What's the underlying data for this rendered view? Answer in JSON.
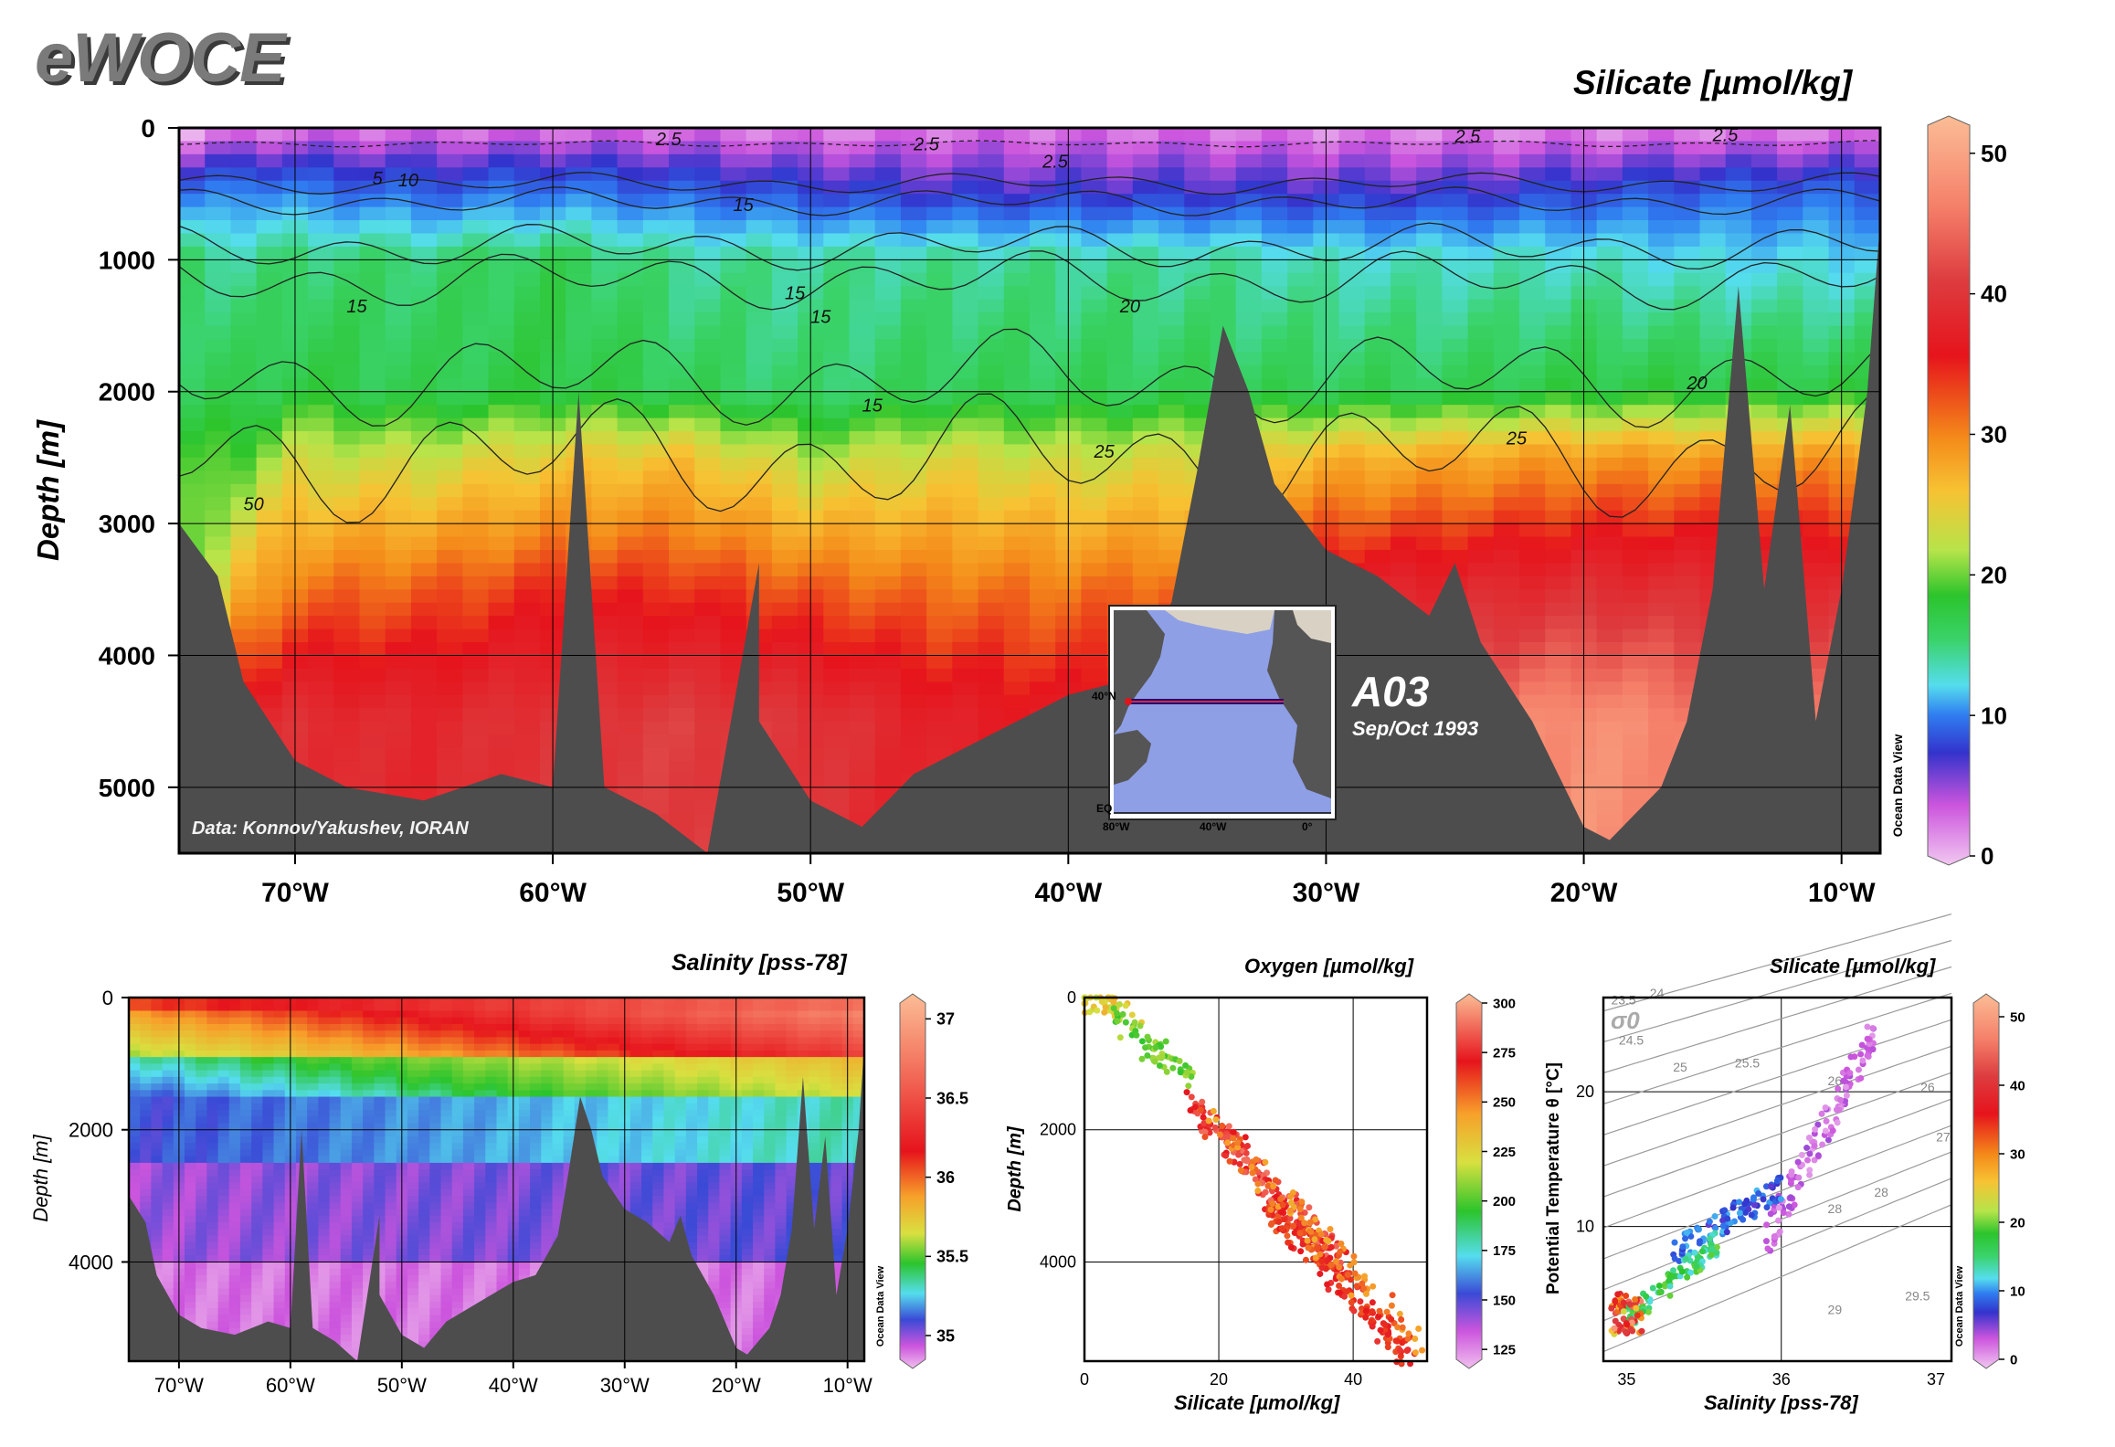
{
  "logo": "eWOCE",
  "credit": "Data: Konnov/Yakushev, IORAN",
  "inset": {
    "section": "A03",
    "date": "Sep/Oct 1993",
    "lat_labels": [
      "40°N",
      "EQ"
    ],
    "lon_labels": [
      "80°W",
      "40°W",
      "0°"
    ]
  },
  "odv": "Ocean Data View",
  "colors": {
    "bathymetry": "#4d4d4d",
    "contour": "#222222",
    "frame": "#000000"
  },
  "chart_data": [
    {
      "type": "heatmap",
      "title": "Silicate [µmol/kg]",
      "ylabel": "Depth [m]",
      "xlabel": "",
      "x_ticks": [
        "70°W",
        "60°W",
        "50°W",
        "40°W",
        "30°W",
        "20°W",
        "10°W"
      ],
      "x_tick_values": [
        -70,
        -60,
        -50,
        -40,
        -30,
        -20,
        -10
      ],
      "y_ticks": [
        "0",
        "1000",
        "2000",
        "3000",
        "4000",
        "5000"
      ],
      "y_tick_values": [
        0,
        1000,
        2000,
        3000,
        4000,
        5000
      ],
      "xlim": [
        -74.5,
        -8.5
      ],
      "ylim": [
        5500,
        0
      ],
      "grid": true,
      "colorbar": {
        "ticks": [
          "0",
          "10",
          "20",
          "30",
          "40",
          "50"
        ],
        "range": [
          0,
          52
        ]
      },
      "contour_labels": [
        "2.5",
        "2.5",
        "2.5",
        "2.5",
        "2.5",
        "5",
        "10",
        "15",
        "15",
        "15",
        "15",
        "15",
        "20",
        "20",
        "25",
        "25",
        "50"
      ],
      "depth_profile": [
        {
          "x": -74.0,
          "z": 0,
          "si": [
            0.5,
            8,
            15,
            16,
            18,
            20,
            24
          ]
        },
        {
          "x": -72.0,
          "z": 300,
          "si": [
            1.5,
            10,
            14,
            16,
            19,
            26,
            37
          ]
        },
        {
          "x": -70.0,
          "z": 300,
          "si": [
            2.0,
            9,
            15,
            17,
            22,
            30,
            38
          ]
        },
        {
          "x": -65.0,
          "z": 300,
          "si": [
            2.0,
            8,
            15,
            16,
            22,
            31,
            37
          ]
        },
        {
          "x": -60.0,
          "z": 300,
          "si": [
            2.0,
            9,
            16,
            17,
            24,
            33,
            39
          ]
        },
        {
          "x": -55.0,
          "z": 300,
          "si": [
            2.0,
            8,
            14,
            16,
            25,
            33,
            40
          ]
        },
        {
          "x": -50.0,
          "z": 300,
          "si": [
            1.5,
            7,
            14,
            15,
            21,
            31,
            39
          ]
        },
        {
          "x": -45.0,
          "z": 300,
          "si": [
            2.0,
            6,
            14,
            16,
            23,
            30,
            36
          ]
        },
        {
          "x": -40.0,
          "z": 300,
          "si": [
            2.0,
            6,
            14,
            16,
            22,
            30,
            35
          ]
        },
        {
          "x": -35.0,
          "z": 300,
          "si": [
            2.0,
            6,
            14,
            16,
            23,
            31,
            36
          ]
        },
        {
          "x": -30.0,
          "z": 300,
          "si": [
            1.5,
            6,
            13,
            16,
            26,
            36,
            42
          ]
        },
        {
          "x": -25.0,
          "z": 300,
          "si": [
            1.5,
            6,
            13,
            16,
            27,
            37,
            44
          ]
        },
        {
          "x": -20.0,
          "z": 300,
          "si": [
            1.5,
            7,
            13,
            17,
            28,
            38,
            47
          ]
        },
        {
          "x": -15.0,
          "z": 300,
          "si": [
            1.5,
            8,
            12,
            17,
            28,
            38,
            45
          ]
        },
        {
          "x": -9.0,
          "z": 300,
          "si": [
            1.5,
            8,
            12,
            17,
            28,
            38,
            44
          ]
        }
      ],
      "depth_levels": [
        0,
        500,
        1000,
        2000,
        2500,
        3500,
        4500
      ],
      "bathymetry": [
        [
          -74.5,
          3000
        ],
        [
          -73,
          3400
        ],
        [
          -72,
          4200
        ],
        [
          -70,
          4800
        ],
        [
          -68,
          5000
        ],
        [
          -65,
          5100
        ],
        [
          -62,
          4900
        ],
        [
          -60,
          5000
        ],
        [
          -59,
          2000
        ],
        [
          -58,
          5000
        ],
        [
          -56,
          5200
        ],
        [
          -54,
          5500
        ],
        [
          -52,
          3300
        ],
        [
          -52,
          4500
        ],
        [
          -50,
          5100
        ],
        [
          -48,
          5300
        ],
        [
          -46,
          4900
        ],
        [
          -44,
          4700
        ],
        [
          -42,
          4500
        ],
        [
          -40,
          4300
        ],
        [
          -38,
          4200
        ],
        [
          -36,
          3600
        ],
        [
          -35,
          2600
        ],
        [
          -34,
          1500
        ],
        [
          -33,
          2000
        ],
        [
          -32,
          2700
        ],
        [
          -30,
          3200
        ],
        [
          -28,
          3400
        ],
        [
          -26,
          3700
        ],
        [
          -25,
          3300
        ],
        [
          -24,
          3900
        ],
        [
          -22,
          4500
        ],
        [
          -20,
          5300
        ],
        [
          -19,
          5400
        ],
        [
          -17,
          5000
        ],
        [
          -16,
          4500
        ],
        [
          -15,
          3500
        ],
        [
          -14,
          1200
        ],
        [
          -13,
          3500
        ],
        [
          -12,
          2100
        ],
        [
          -11,
          4500
        ],
        [
          -10,
          3500
        ],
        [
          -9,
          2000
        ],
        [
          -8.5,
          700
        ]
      ]
    },
    {
      "type": "heatmap",
      "title": "Salinity [pss-78]",
      "ylabel": "Depth [m]",
      "x_ticks": [
        "70°W",
        "60°W",
        "50°W",
        "40°W",
        "30°W",
        "20°W",
        "10°W"
      ],
      "x_tick_values": [
        -70,
        -60,
        -50,
        -40,
        -30,
        -20,
        -10
      ],
      "y_ticks": [
        "0",
        "2000",
        "4000"
      ],
      "y_tick_values": [
        0,
        2000,
        4000
      ],
      "xlim": [
        -74.5,
        -8.5
      ],
      "ylim": [
        5500,
        0
      ],
      "grid": true,
      "colorbar": {
        "ticks": [
          "35",
          "35.5",
          "36",
          "36.5",
          "37"
        ],
        "range": [
          34.85,
          37.1
        ]
      }
    },
    {
      "type": "scatter",
      "title": "Oxygen [µmol/kg]",
      "xlabel": "Silicate [µmol/kg]",
      "ylabel": "Depth [m]",
      "x_ticks": [
        "0",
        "20",
        "40"
      ],
      "y_ticks": [
        "0",
        "2000",
        "4000"
      ],
      "xlim": [
        0,
        51
      ],
      "ylim": [
        5500,
        0
      ],
      "grid": true,
      "colorbar": {
        "ticks": [
          "125",
          "150",
          "175",
          "200",
          "225",
          "250",
          "275",
          "300"
        ],
        "range": [
          120,
          300
        ]
      },
      "clusters": [
        {
          "name": "",
          "x_range": [
            0,
            8
          ],
          "y_range": [
            0,
            300
          ],
          "oxygen": 225,
          "n": 40
        },
        {
          "name": "",
          "x_range": [
            5,
            16
          ],
          "y_range": [
            300,
            1300
          ],
          "oxygen": 205,
          "n": 60
        },
        {
          "name": "",
          "x_range": [
            16,
            38
          ],
          "y_range": [
            1600,
            4000
          ],
          "oxygen": 275,
          "n": 180
        },
        {
          "name": "",
          "x_range": [
            28,
            48
          ],
          "y_range": [
            3200,
            5400
          ],
          "oxygen": 262,
          "n": 160
        },
        {
          "name": "",
          "x_range": [
            18,
            50
          ],
          "y_range": [
            1800,
            5300
          ],
          "oxygen": 245,
          "n": 110
        }
      ]
    },
    {
      "type": "scatter",
      "title": "Silicate [µmol/kg]",
      "xlabel": "Salinity [pss-78]",
      "ylabel": "Potential Temperature θ [°C]",
      "x_ticks": [
        "35",
        "36",
        "37"
      ],
      "y_ticks": [
        "10",
        "20"
      ],
      "xlim": [
        34.85,
        37.1
      ],
      "ylim": [
        0,
        27
      ],
      "grid": true,
      "isopycnal_labels": [
        "23.5",
        "24",
        "24.5",
        "25",
        "25.5",
        "26",
        "26",
        "27",
        "28",
        "28",
        "29",
        "29.5"
      ],
      "corner_label": "σ0",
      "colorbar": {
        "ticks": [
          "0",
          "10",
          "20",
          "30",
          "40",
          "50"
        ],
        "range": [
          0,
          52
        ]
      }
    }
  ]
}
